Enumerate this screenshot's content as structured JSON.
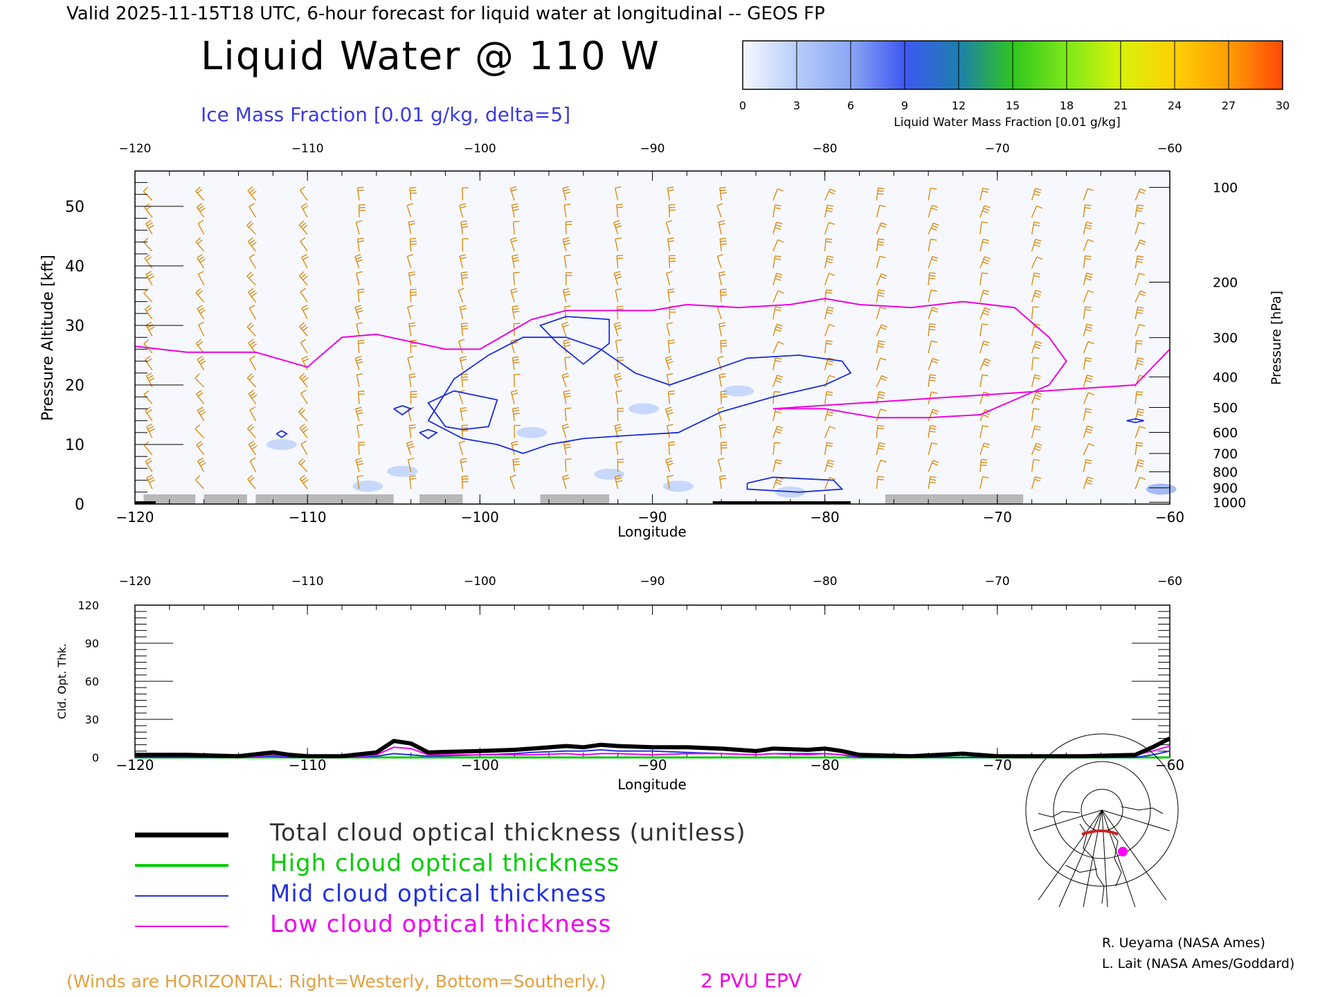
{
  "header": {
    "valid_line": "Valid 2025-11-15T18 UTC, 6-hour forecast for liquid water at longitudinal -- GEOS FP",
    "main_title": "Liquid Water @ 110 W",
    "ice_label": "Ice Mass Fraction [0.01 g/kg, delta=5]"
  },
  "colorbar": {
    "label": "Liquid Water Mass Fraction [0.01 g/kg]",
    "ticks": [
      "0",
      "3",
      "6",
      "9",
      "12",
      "15",
      "18",
      "21",
      "24",
      "27",
      "30"
    ],
    "colors": [
      "#f6f8fe",
      "#b8cdfb",
      "#8aa6f4",
      "#3e58f2",
      "#1d7fae",
      "#2fc520",
      "#7de818",
      "#d8f20a",
      "#ffd005",
      "#ff9d04",
      "#ff4808"
    ]
  },
  "axes": {
    "lon_ticks": [
      "−120",
      "−110",
      "−100",
      "−90",
      "−80",
      "−70",
      "−60"
    ],
    "xlabel": "Longitude",
    "left_ylabel": "Pressure Altitude [kft]",
    "left_yticks": [
      "0",
      "10",
      "20",
      "30",
      "40",
      "50"
    ],
    "right_ylabel": "Pressure [hPa]",
    "right_yticks": [
      "100",
      "200",
      "300",
      "400",
      "500",
      "600",
      "700",
      "800",
      "900",
      "1000"
    ],
    "bottom_ylabel": "Cld. Opt. Thk.",
    "bottom_yticks": [
      "0",
      "30",
      "60",
      "90",
      "120"
    ]
  },
  "chart_data": [
    {
      "type": "heatmap",
      "title": "Liquid Water @ 110 W",
      "xlabel": "Longitude",
      "ylabel": "Pressure Altitude [kft]",
      "y2label": "Pressure [hPa]",
      "xlim": [
        -120,
        -60
      ],
      "ylim": [
        0,
        55
      ],
      "y2_ticks_hPa": [
        100,
        200,
        300,
        400,
        500,
        600,
        700,
        800,
        900,
        1000
      ],
      "grid": false,
      "liquid_water_patches": [
        {
          "lon": -111.5,
          "alt_kft": 10,
          "value": 1
        },
        {
          "lon": -104.5,
          "alt_kft": 5.5,
          "value": 3
        },
        {
          "lon": -106.5,
          "alt_kft": 3,
          "value": 2
        },
        {
          "lon": -97,
          "alt_kft": 12,
          "value": 1
        },
        {
          "lon": -92.5,
          "alt_kft": 5,
          "value": 2
        },
        {
          "lon": -90.5,
          "alt_kft": 16,
          "value": 2
        },
        {
          "lon": -88.5,
          "alt_kft": 3,
          "value": 2
        },
        {
          "lon": -85,
          "alt_kft": 19,
          "value": 1
        },
        {
          "lon": -82,
          "alt_kft": 2,
          "value": 3
        },
        {
          "lon": -60.5,
          "alt_kft": 2.5,
          "value": 6
        }
      ],
      "ice_contours_lonalt": [
        [
          [
            -102,
            13
          ],
          [
            -103,
            17
          ],
          [
            -101.5,
            19
          ],
          [
            -99,
            17.5
          ],
          [
            -99.5,
            13
          ],
          [
            -101,
            12.5
          ],
          [
            -102,
            13
          ]
        ],
        [
          [
            -103,
            14
          ],
          [
            -101.5,
            21
          ],
          [
            -99.5,
            25
          ],
          [
            -97.5,
            28
          ],
          [
            -95,
            28
          ],
          [
            -93,
            26
          ],
          [
            -91,
            22
          ],
          [
            -89,
            20
          ],
          [
            -88,
            21
          ],
          [
            -86,
            23
          ],
          [
            -84.5,
            24.5
          ],
          [
            -81.5,
            25
          ],
          [
            -79,
            24
          ],
          [
            -78.5,
            22
          ],
          [
            -80,
            20
          ],
          [
            -83,
            18
          ],
          [
            -86,
            15.5
          ],
          [
            -88.5,
            12
          ],
          [
            -91.5,
            11.5
          ],
          [
            -94,
            11
          ],
          [
            -96,
            10
          ],
          [
            -97.5,
            8.5
          ],
          [
            -99,
            10
          ],
          [
            -101,
            11
          ],
          [
            -103,
            14
          ]
        ],
        [
          [
            -95.5,
            27
          ],
          [
            -96.5,
            30
          ],
          [
            -95,
            31.5
          ],
          [
            -92.5,
            31
          ],
          [
            -92.5,
            27
          ],
          [
            -94,
            23.5
          ],
          [
            -95.5,
            27
          ]
        ],
        [
          [
            -84.5,
            3.5
          ],
          [
            -83,
            4.5
          ],
          [
            -79.5,
            4
          ],
          [
            -79,
            2.5
          ],
          [
            -81.5,
            2
          ],
          [
            -84.5,
            2.5
          ],
          [
            -84.5,
            3.5
          ]
        ],
        [
          [
            -105,
            16
          ],
          [
            -104.5,
            16.5
          ],
          [
            -104,
            16
          ],
          [
            -104.5,
            15
          ],
          [
            -105,
            16
          ]
        ],
        [
          [
            -103.5,
            12
          ],
          [
            -103,
            12.5
          ],
          [
            -102.5,
            12
          ],
          [
            -103,
            11
          ],
          [
            -103.5,
            12
          ]
        ],
        [
          [
            -111.8,
            11.8
          ],
          [
            -111.5,
            12.3
          ],
          [
            -111.2,
            11.8
          ],
          [
            -111.5,
            11.2
          ],
          [
            -111.8,
            11.8
          ]
        ],
        [
          [
            -62.5,
            14
          ],
          [
            -62,
            14.3
          ],
          [
            -61.5,
            14
          ],
          [
            -62,
            13.7
          ],
          [
            -62.5,
            14
          ]
        ]
      ],
      "epv_2pvu_line_lonalt": [
        [
          -120,
          26.5
        ],
        [
          -117,
          25.5
        ],
        [
          -113,
          25.5
        ],
        [
          -110,
          23
        ],
        [
          -108,
          28
        ],
        [
          -106,
          28.5
        ],
        [
          -102,
          26
        ],
        [
          -100,
          26
        ],
        [
          -97,
          31
        ],
        [
          -95,
          32.5
        ],
        [
          -93,
          32.5
        ],
        [
          -90,
          32.5
        ],
        [
          -88,
          33.5
        ],
        [
          -85,
          33
        ],
        [
          -82,
          33.5
        ],
        [
          -80,
          34.5
        ],
        [
          -78,
          33.5
        ],
        [
          -75,
          33
        ],
        [
          -72,
          34
        ],
        [
          -69,
          33
        ],
        [
          -67,
          28
        ],
        [
          -66,
          24
        ],
        [
          -67,
          20
        ],
        [
          -71,
          15
        ],
        [
          -74,
          14.5
        ],
        [
          -77,
          14.5
        ],
        [
          -80,
          16
        ],
        [
          -83,
          16
        ],
        [
          -62,
          20
        ],
        [
          -60,
          26
        ]
      ],
      "ground_shading_lon": [
        [
          -119.5,
          -116.5
        ],
        [
          -116,
          -113.5
        ],
        [
          -113,
          -110
        ],
        [
          -110,
          -105
        ],
        [
          -103.5,
          -101
        ],
        [
          -96.5,
          -92.5
        ],
        [
          -76.5,
          -68.5
        ]
      ]
    },
    {
      "type": "line",
      "xlabel": "Longitude",
      "ylabel": "Cld. Opt. Thk.",
      "xlim": [
        -120,
        -60
      ],
      "ylim": [
        0,
        120
      ],
      "x": [
        -120,
        -117,
        -114,
        -112,
        -111,
        -110,
        -108,
        -106,
        -105,
        -104,
        -103,
        -100,
        -98,
        -97,
        -95,
        -94,
        -93,
        -92,
        -90,
        -88,
        -86,
        -84,
        -83,
        -81,
        -80,
        -79,
        -78,
        -75,
        -72,
        -70,
        -65,
        -62,
        -61,
        -60
      ],
      "series": [
        {
          "name": "Total cloud optical thickness (unitless)",
          "color": "#000000",
          "values": [
            2,
            2,
            1,
            4,
            2,
            1,
            1,
            4,
            13,
            11,
            4,
            5,
            6,
            7,
            9,
            8,
            10,
            9,
            8,
            8,
            7,
            5,
            7,
            6,
            7,
            5,
            2,
            1,
            3,
            1,
            1,
            2,
            8,
            15
          ]
        },
        {
          "name": "High cloud optical thickness",
          "color": "#00cc00",
          "values": [
            0,
            0,
            0,
            0,
            0,
            0,
            0,
            0,
            0,
            0,
            0,
            0,
            0,
            0,
            0,
            0,
            0,
            0,
            0,
            0,
            0,
            0,
            0,
            0,
            0,
            0,
            0,
            0,
            0,
            0,
            0,
            0,
            0,
            0
          ]
        },
        {
          "name": "Mid cloud optical thickness",
          "color": "#2233dd",
          "values": [
            0,
            0,
            0,
            1,
            0,
            0,
            0,
            1,
            3,
            2,
            1,
            2,
            3,
            4,
            5,
            5,
            6,
            5,
            5,
            4,
            3,
            2,
            3,
            3,
            3,
            2,
            0,
            0,
            0,
            0,
            0,
            0,
            2,
            5
          ]
        },
        {
          "name": "Low cloud optical thickness",
          "color": "#ee00ee",
          "values": [
            1,
            1,
            0,
            2,
            1,
            0,
            0,
            2,
            8,
            7,
            2,
            2,
            2,
            2,
            3,
            2,
            3,
            3,
            2,
            3,
            3,
            2,
            3,
            2,
            3,
            2,
            1,
            1,
            2,
            0,
            1,
            2,
            5,
            9
          ]
        }
      ]
    }
  ],
  "legend": {
    "items": [
      {
        "label": "Total cloud optical thickness (unitless)",
        "color": "#000000"
      },
      {
        "label": "High cloud optical thickness",
        "color": "#00cc00"
      },
      {
        "label": "Mid cloud optical thickness",
        "color": "#2233dd"
      },
      {
        "label": "Low cloud optical thickness",
        "color": "#ee00ee"
      }
    ]
  },
  "footer": {
    "winds_note": "(Winds are HORIZONTAL: Right=Westerly, Bottom=Southerly.)",
    "epv_label": "2 PVU EPV",
    "credit1": "R. Ueyama (NASA Ames)",
    "credit2": "L. Lait (NASA Ames/Goddard)"
  },
  "colors": {
    "ice_contour": "#1a2bdc",
    "epv_line": "#ee00dd",
    "wind_barb": "#d98c17",
    "wind_note": "#e0a040",
    "ice_label": "#3a3ae0",
    "map_marker": "#ff00ff",
    "ground": "#b8b8b8"
  },
  "inset_map": {
    "icon": "globe-projection-map-icon"
  }
}
